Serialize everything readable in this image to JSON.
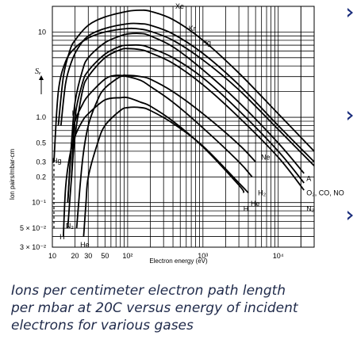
{
  "chart_data": {
    "type": "line",
    "title": "",
    "xlabel": "Electron energy (eV)",
    "ylabel": "Ion pairs/mbar-cm",
    "ylabel_symbol": "Sₑ",
    "xscale": "log",
    "yscale": "log",
    "xlim": [
      10,
      30000
    ],
    "ylim": [
      0.03,
      20
    ],
    "grid": true,
    "x_tick_labels": [
      "10",
      "20",
      "30",
      "50",
      "10²",
      "10³",
      "10⁴"
    ],
    "x_tick_values": [
      10,
      20,
      30,
      50,
      100,
      1000,
      10000
    ],
    "y_tick_labels": [
      "3 × 10⁻²",
      "5 × 10⁻²",
      "10⁻¹",
      "0.2",
      "0.3",
      "0.5",
      "1.0",
      "10"
    ],
    "y_tick_values": [
      0.03,
      0.05,
      0.1,
      0.2,
      0.3,
      0.5,
      1.0,
      10
    ],
    "series": [
      {
        "name": "Xe",
        "label_x": 400,
        "label_y": 20,
        "dashed_start": false,
        "x": [
          12,
          14,
          17,
          20,
          30,
          50,
          100,
          150,
          200,
          400,
          1000,
          3000,
          10000,
          30000
        ],
        "y": [
          0.8,
          3,
          6,
          8,
          12,
          15,
          17.5,
          18,
          17.5,
          14,
          8,
          3.3,
          1.1,
          0.4
        ]
      },
      {
        "name": "Kr",
        "label_x": 600,
        "label_y": 11,
        "dashed_start": false,
        "x": [
          13,
          15,
          18,
          22,
          30,
          50,
          100,
          150,
          200,
          400,
          1000,
          3000,
          10000,
          30000
        ],
        "y": [
          0.8,
          2.5,
          4.5,
          6.5,
          9,
          11,
          12.5,
          12.5,
          12,
          9.5,
          5.6,
          2.4,
          0.8,
          0.3
        ]
      },
      {
        "name": "Hg",
        "label_x": 900,
        "label_y": 7.5,
        "dashed_start": true,
        "x": [
          10.5,
          12,
          15,
          20,
          30,
          50,
          100,
          150,
          200,
          400,
          1000,
          3000,
          10000,
          30000
        ],
        "y": [
          0.3,
          2,
          4.5,
          6.5,
          8.5,
          10,
          11,
          10.8,
          10.2,
          8,
          4.7,
          2.1,
          0.72,
          0.27
        ]
      },
      {
        "name": "A",
        "label_x": 22000,
        "label_y": 0.19,
        "dashed_start": false,
        "x": [
          16,
          18,
          20,
          25,
          30,
          50,
          80,
          100,
          150,
          200,
          400,
          1000,
          3000,
          10000,
          22000
        ],
        "y": [
          0.1,
          0.5,
          1.5,
          3.5,
          5,
          7.5,
          9,
          9.5,
          9.6,
          9,
          6.7,
          3.6,
          1.5,
          0.5,
          0.22
        ]
      },
      {
        "name": "O₂, CO, NO",
        "label_x": 22000,
        "label_y": 0.13,
        "dashed_start": false,
        "x": [
          18,
          20,
          25,
          30,
          50,
          80,
          100,
          150,
          200,
          400,
          1000,
          3000,
          10000,
          22000
        ],
        "y": [
          0.2,
          1,
          2.5,
          3.5,
          5.5,
          6.8,
          7,
          7,
          6.5,
          5,
          2.9,
          1.2,
          0.4,
          0.17
        ]
      },
      {
        "name": "N₂",
        "label_x": 22000,
        "label_y": 0.085,
        "dashed_start": false,
        "x": [
          16,
          18,
          20,
          25,
          30,
          50,
          80,
          100,
          150,
          200,
          400,
          1000,
          3000,
          10000,
          22000
        ],
        "y": [
          0.05,
          0.2,
          0.6,
          2,
          3,
          5,
          6.2,
          6.4,
          6.2,
          5.7,
          4.3,
          2.4,
          1,
          0.34,
          0.14
        ]
      },
      {
        "name": "Ne",
        "label_x": 5500,
        "label_y": 0.34,
        "dashed_start": false,
        "x": [
          21,
          25,
          30,
          40,
          50,
          80,
          100,
          150,
          200,
          400,
          1000,
          3000,
          5000
        ],
        "y": [
          0.05,
          0.3,
          0.8,
          1.6,
          2.2,
          3,
          3.1,
          3,
          2.8,
          2,
          1.1,
          0.48,
          0.3
        ]
      },
      {
        "name": "H₂",
        "label_x": 5000,
        "label_y": 0.13,
        "dashed_start": false,
        "x": [
          16,
          18,
          20,
          25,
          30,
          50,
          70,
          100,
          150,
          200,
          400,
          1000,
          3000,
          4500
        ],
        "y": [
          0.1,
          0.5,
          0.9,
          1.4,
          1.8,
          2.8,
          3.1,
          3,
          2.7,
          2.3,
          1.5,
          0.75,
          0.3,
          0.2
        ]
      },
      {
        "name": "He",
        "label_x": 4000,
        "label_y": 0.097,
        "dashed_start": false,
        "x": [
          26,
          28,
          30,
          40,
          50,
          80,
          100,
          150,
          200,
          400,
          1000,
          3000,
          4000
        ],
        "y": [
          0.04,
          0.1,
          0.2,
          0.5,
          0.8,
          1.2,
          1.3,
          1.3,
          1.2,
          0.85,
          0.46,
          0.17,
          0.13
        ]
      },
      {
        "name": "H",
        "label_x": 3200,
        "label_y": 0.085,
        "dashed_start": false,
        "x": [
          14,
          15,
          17,
          20,
          25,
          30,
          50,
          80,
          100,
          150,
          200,
          400,
          1000,
          3000,
          3500
        ],
        "y": [
          0.04,
          0.15,
          0.35,
          0.6,
          0.9,
          1.1,
          1.6,
          1.7,
          1.7,
          1.5,
          1.35,
          0.9,
          0.45,
          0.16,
          0.13
        ]
      }
    ],
    "threshold_labels": [
      {
        "text": "Hg",
        "x": 11.5,
        "y": 0.29
      },
      {
        "text": "H₂",
        "x": 20.5,
        "y": 1.05
      },
      {
        "text": "N₂",
        "x": 17,
        "y": 0.05
      },
      {
        "text": "H",
        "x": 13.5,
        "y": 0.037
      },
      {
        "text": "He",
        "x": 27,
        "y": 0.03
      }
    ]
  },
  "caption": {
    "lines": [
      "Ions per centimeter electron path length",
      "per mbar at 20C versus energy of incident",
      "electrons for various gases"
    ]
  },
  "colors": {
    "curve": "#000000",
    "grid": "#000000",
    "caption_text": "#1f2a4a",
    "bullet": "#1a2d7c"
  }
}
